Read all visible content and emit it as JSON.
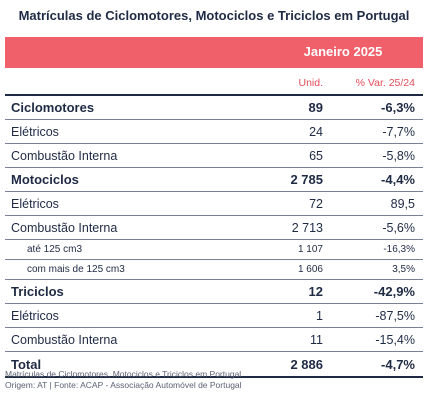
{
  "title": "Matrículas de Ciclomotores, Motociclos e Triciclos em Portugal",
  "header": {
    "period": "Janeiro 2025",
    "col_units": "Unid.",
    "col_var": "% Var. 25/24"
  },
  "rows": [
    {
      "label": "Ciclomotores",
      "units": "89",
      "var": "-6,3%"
    },
    {
      "label": "Elétricos",
      "units": "24",
      "var": "-7,7%"
    },
    {
      "label": "Combustão Interna",
      "units": "65",
      "var": "-5,8%"
    },
    {
      "label": "Motociclos",
      "units": "2 785",
      "var": "-4,4%"
    },
    {
      "label": "Elétricos",
      "units": "72",
      "var": "89,5"
    },
    {
      "label": "Combustão Interna",
      "units": "2 713",
      "var": "-5,6%"
    },
    {
      "label": "até 125 cm3",
      "units": "1 107",
      "var": "-16,3%"
    },
    {
      "label": "com mais de 125 cm3",
      "units": "1 606",
      "var": "3,5%"
    },
    {
      "label": "Triciclos",
      "units": "12",
      "var": "-42,9%"
    },
    {
      "label": "Elétricos",
      "units": "1",
      "var": "-87,5%"
    },
    {
      "label": "Combustão Interna",
      "units": "11",
      "var": "-15,4%"
    },
    {
      "label": "Total",
      "units": "2 886",
      "var": "-4,7%"
    }
  ],
  "footer": {
    "line1": "Matrículas de Ciclomotores, Motociclos e Triciclos em Portugal",
    "line2": "Origem: AT | Fonte: ACAP - Associação Automóvel de Portugal"
  },
  "colors": {
    "header_bg": "#f0606b",
    "text": "#1f2a44",
    "accent_text": "#e34b57"
  }
}
